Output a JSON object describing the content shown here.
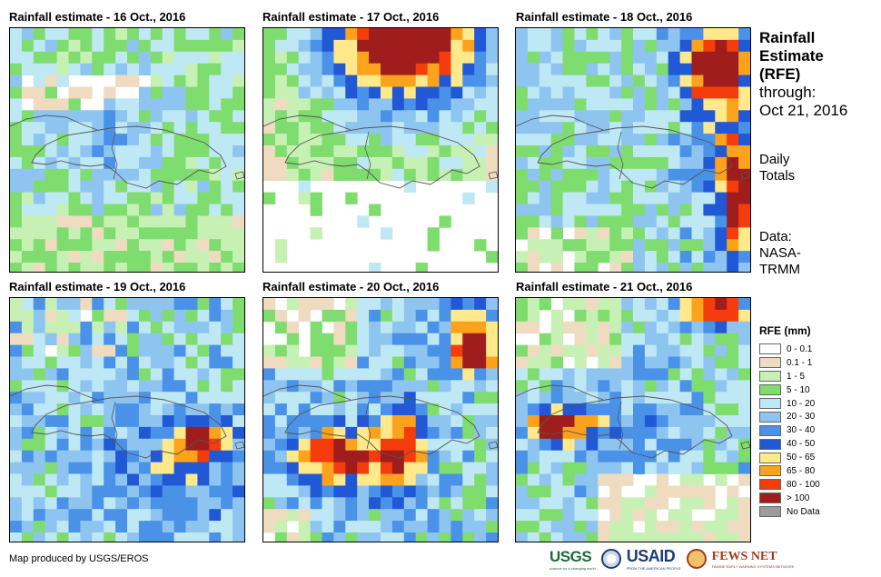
{
  "panels": [
    {
      "title": "Rainfall estimate - 16 Oct., 2016",
      "pattern": "light"
    },
    {
      "title": "Rainfall estimate - 17 Oct., 2016",
      "pattern": "heavy-north"
    },
    {
      "title": "Rainfall estimate - 18 Oct., 2016",
      "pattern": "northeast-east"
    },
    {
      "title": "Rainfall estimate - 19 Oct., 2016",
      "pattern": "scattered-south"
    },
    {
      "title": "Rainfall estimate - 20 Oct., 2016",
      "pattern": "southwest-heavy"
    },
    {
      "title": "Rainfall estimate - 21 Oct., 2016",
      "pattern": "southwest-band"
    }
  ],
  "side": {
    "title_lines": [
      "Rainfall",
      "Estimate",
      "(RFE)"
    ],
    "through": "through:",
    "date": "Oct 21, 2016",
    "totals_line1": "Daily",
    "totals_line2": "Totals",
    "data_line1": "Data:",
    "data_line2": "NASA-",
    "data_line3": "TRMM"
  },
  "legend": {
    "title": "RFE (mm)",
    "items": [
      {
        "label": "0 - 0.1",
        "color": "#ffffff"
      },
      {
        "label": "0.1 - 1",
        "color": "#efdcc0"
      },
      {
        "label": "1 - 5",
        "color": "#c6f0b4"
      },
      {
        "label": "5 - 10",
        "color": "#7fdc6e"
      },
      {
        "label": "10 - 20",
        "color": "#bfe8f5"
      },
      {
        "label": "20 - 30",
        "color": "#8ec5f0"
      },
      {
        "label": "30 - 40",
        "color": "#4a92e8"
      },
      {
        "label": "40 - 50",
        "color": "#2158d6"
      },
      {
        "label": "50 - 65",
        "color": "#ffe98a"
      },
      {
        "label": "65 - 80",
        "color": "#fca21d"
      },
      {
        "label": "80 - 100",
        "color": "#f43c0c"
      },
      {
        "label": "> 100",
        "color": "#a01d1d"
      },
      {
        "label": "No Data",
        "color": "#9c9c9c"
      }
    ]
  },
  "footer": {
    "credit": "Map produced by USGS/EROS"
  },
  "logos": {
    "usgs": "USGS",
    "usgs_tagline": "science for a changing world",
    "usaid": "USAID",
    "usaid_tagline": "FROM THE AMERICAN PEOPLE",
    "fews": "FEWS NET",
    "fews_tagline": "FAMINE EARLY WARNING SYSTEMS NETWORK"
  }
}
